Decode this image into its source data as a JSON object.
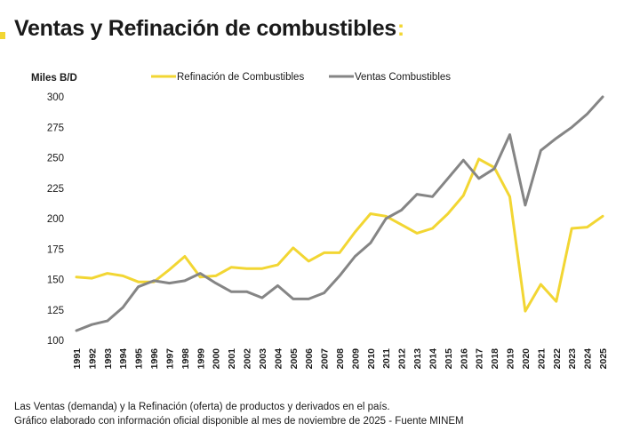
{
  "header": {
    "title": "Ventas y Refinación de combustibles",
    "title_suffix": ":"
  },
  "footnote": {
    "line1": "Las Ventas (demanda) y la Refinación (oferta) de productos y derivados en el país.",
    "line2": "Gráfico elaborado con información oficial disponible al mes de noviembre de 2025 - Fuente MINEM"
  },
  "colors": {
    "accent": "#f2d633",
    "refinacion": "#f2d633",
    "ventas": "#858585"
  },
  "chart_data": {
    "type": "line",
    "ylabel": "Miles B/D",
    "ylim": [
      100,
      300
    ],
    "yticks": [
      100,
      125,
      150,
      175,
      200,
      225,
      250,
      275,
      300
    ],
    "grid": false,
    "legend_placement": "top-center",
    "x": [
      "1991",
      "1992",
      "1993",
      "1994",
      "1995",
      "1996",
      "1997",
      "1998",
      "1999",
      "2000",
      "2001",
      "2002",
      "2003",
      "2004",
      "2005",
      "2006",
      "2007",
      "2008",
      "2009",
      "2010",
      "2011",
      "2012",
      "2013",
      "2014",
      "2015",
      "2016",
      "2017",
      "2018",
      "2019",
      "2020",
      "2021",
      "2022",
      "2023",
      "2024",
      "2025"
    ],
    "series": [
      {
        "name": "Refinación de Combustibles",
        "values": [
          152,
          151,
          155,
          153,
          148,
          148,
          158,
          169,
          152,
          153,
          160,
          159,
          159,
          162,
          176,
          165,
          172,
          172,
          189,
          204,
          202,
          195,
          188,
          192,
          204,
          219,
          249,
          242,
          218,
          124,
          146,
          132,
          192,
          193,
          202
        ]
      },
      {
        "name": "Ventas Combustibles",
        "values": [
          108,
          113,
          116,
          127,
          144,
          149,
          147,
          149,
          155,
          147,
          140,
          140,
          135,
          145,
          134,
          134,
          139,
          153,
          169,
          180,
          200,
          207,
          220,
          218,
          233,
          248,
          233,
          241,
          269,
          211,
          256,
          266,
          275,
          286,
          300
        ]
      }
    ]
  }
}
